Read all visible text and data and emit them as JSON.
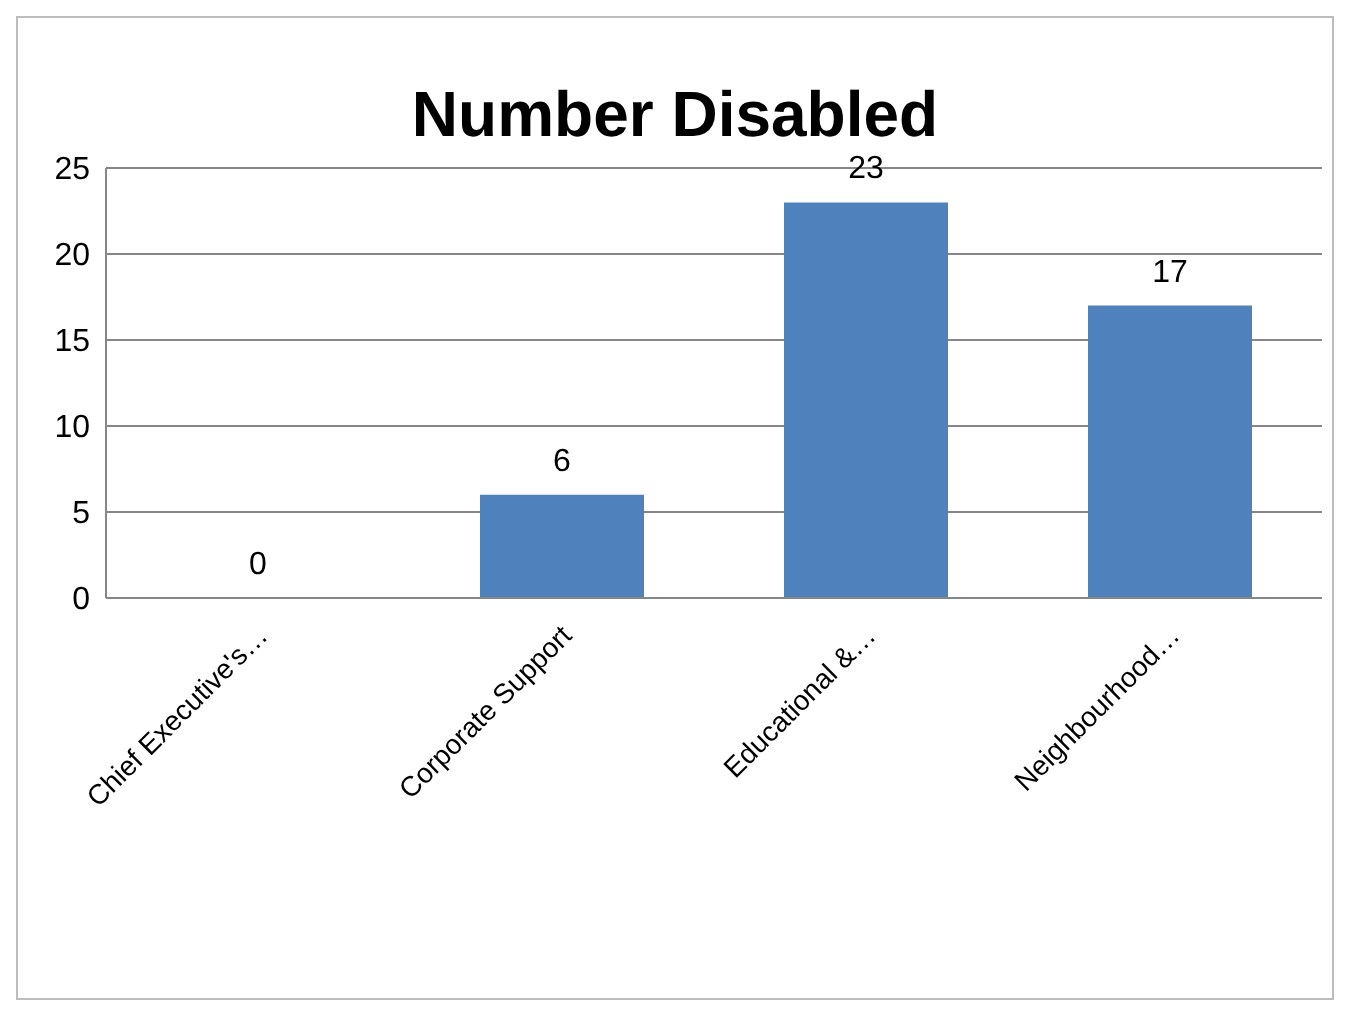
{
  "chart_data": {
    "type": "bar",
    "title": "Number Disabled",
    "categories": [
      "Chief Executive's…",
      "Corporate Support",
      "Educational &…",
      "Neighbourhood…"
    ],
    "values": [
      0,
      6,
      23,
      17
    ],
    "color": "#4f81bd",
    "ylim": [
      0,
      25
    ],
    "yticks": [
      0,
      5,
      10,
      15,
      20,
      25
    ],
    "grid": "y",
    "data_labels": true,
    "legend": false
  }
}
